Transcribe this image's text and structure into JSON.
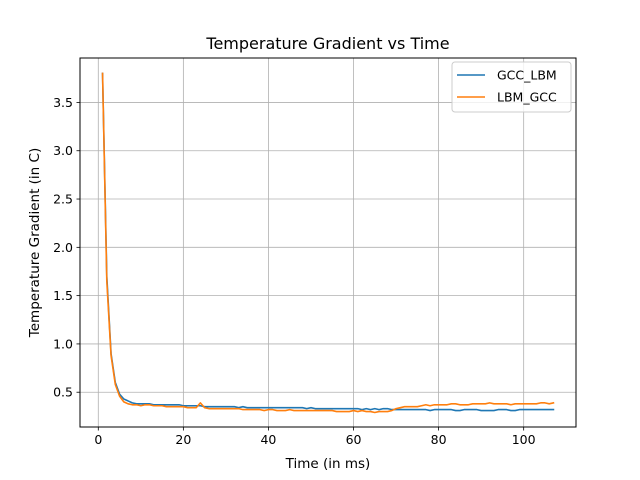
{
  "chart_data": {
    "type": "line",
    "title": "Temperature Gradient vs Time",
    "xlabel": "Time (in ms)",
    "ylabel": "Temperature Gradient (in C)",
    "xlim": [
      -4.3,
      112.3
    ],
    "ylim": [
      0.14,
      3.96
    ],
    "xticks": [
      0,
      20,
      40,
      60,
      80,
      100
    ],
    "yticks": [
      0.5,
      1.0,
      1.5,
      2.0,
      2.5,
      3.0,
      3.5
    ],
    "xtick_labels": [
      "0",
      "20",
      "40",
      "60",
      "80",
      "100"
    ],
    "ytick_labels": [
      "0.5",
      "1.0",
      "1.5",
      "2.0",
      "2.5",
      "3.0",
      "3.5"
    ],
    "grid": true,
    "legend_position": "top-right",
    "series": [
      {
        "name": "GCC_LBM",
        "color": "#1f77b4",
        "x": [
          1,
          2,
          3,
          4,
          5,
          6,
          7,
          8,
          9,
          10,
          11,
          12,
          13,
          14,
          15,
          16,
          17,
          18,
          19,
          20,
          21,
          22,
          23,
          24,
          25,
          26,
          27,
          28,
          29,
          30,
          31,
          32,
          33,
          34,
          35,
          36,
          37,
          38,
          39,
          40,
          41,
          42,
          43,
          44,
          45,
          46,
          47,
          48,
          49,
          50,
          51,
          52,
          53,
          54,
          55,
          56,
          57,
          58,
          59,
          60,
          61,
          62,
          63,
          64,
          65,
          66,
          67,
          68,
          69,
          70,
          71,
          72,
          73,
          74,
          75,
          76,
          77,
          78,
          79,
          80,
          81,
          82,
          83,
          84,
          85,
          86,
          87,
          88,
          89,
          90,
          91,
          92,
          93,
          94,
          95,
          96,
          97,
          98,
          99,
          100,
          101,
          102,
          103,
          104,
          105,
          106,
          107
        ],
        "y": [
          3.8,
          1.7,
          0.9,
          0.6,
          0.48,
          0.43,
          0.41,
          0.39,
          0.38,
          0.38,
          0.38,
          0.38,
          0.37,
          0.37,
          0.37,
          0.37,
          0.37,
          0.37,
          0.37,
          0.36,
          0.36,
          0.36,
          0.36,
          0.36,
          0.35,
          0.35,
          0.35,
          0.35,
          0.35,
          0.35,
          0.35,
          0.35,
          0.34,
          0.35,
          0.34,
          0.34,
          0.34,
          0.34,
          0.34,
          0.34,
          0.34,
          0.34,
          0.34,
          0.34,
          0.34,
          0.34,
          0.34,
          0.34,
          0.33,
          0.34,
          0.33,
          0.33,
          0.33,
          0.33,
          0.33,
          0.33,
          0.33,
          0.33,
          0.33,
          0.33,
          0.33,
          0.32,
          0.33,
          0.32,
          0.33,
          0.32,
          0.33,
          0.33,
          0.32,
          0.32,
          0.32,
          0.32,
          0.32,
          0.32,
          0.32,
          0.32,
          0.32,
          0.31,
          0.32,
          0.32,
          0.32,
          0.32,
          0.32,
          0.31,
          0.31,
          0.32,
          0.32,
          0.32,
          0.32,
          0.31,
          0.31,
          0.31,
          0.31,
          0.32,
          0.32,
          0.32,
          0.31,
          0.31,
          0.32,
          0.32,
          0.32,
          0.32,
          0.32,
          0.32,
          0.32,
          0.32,
          0.32
        ]
      },
      {
        "name": "LBM_GCC",
        "color": "#ff7f0e",
        "x": [
          1,
          2,
          3,
          4,
          5,
          6,
          7,
          8,
          9,
          10,
          11,
          12,
          13,
          14,
          15,
          16,
          17,
          18,
          19,
          20,
          21,
          22,
          23,
          24,
          25,
          26,
          27,
          28,
          29,
          30,
          31,
          32,
          33,
          34,
          35,
          36,
          37,
          38,
          39,
          40,
          41,
          42,
          43,
          44,
          45,
          46,
          47,
          48,
          49,
          50,
          51,
          52,
          53,
          54,
          55,
          56,
          57,
          58,
          59,
          60,
          61,
          62,
          63,
          64,
          65,
          66,
          67,
          68,
          69,
          70,
          71,
          72,
          73,
          74,
          75,
          76,
          77,
          78,
          79,
          80,
          81,
          82,
          83,
          84,
          85,
          86,
          87,
          88,
          89,
          90,
          91,
          92,
          93,
          94,
          95,
          96,
          97,
          98,
          99,
          100,
          101,
          102,
          103,
          104,
          105,
          106,
          107
        ],
        "y": [
          3.8,
          1.65,
          0.88,
          0.58,
          0.46,
          0.4,
          0.38,
          0.37,
          0.37,
          0.36,
          0.37,
          0.37,
          0.36,
          0.36,
          0.36,
          0.35,
          0.35,
          0.35,
          0.35,
          0.35,
          0.34,
          0.34,
          0.34,
          0.39,
          0.34,
          0.33,
          0.33,
          0.33,
          0.33,
          0.33,
          0.33,
          0.33,
          0.33,
          0.32,
          0.32,
          0.32,
          0.32,
          0.32,
          0.31,
          0.32,
          0.32,
          0.31,
          0.31,
          0.31,
          0.32,
          0.31,
          0.31,
          0.31,
          0.31,
          0.31,
          0.31,
          0.31,
          0.31,
          0.31,
          0.31,
          0.3,
          0.3,
          0.3,
          0.3,
          0.31,
          0.3,
          0.31,
          0.3,
          0.3,
          0.29,
          0.3,
          0.3,
          0.3,
          0.31,
          0.33,
          0.34,
          0.35,
          0.35,
          0.35,
          0.35,
          0.36,
          0.37,
          0.36,
          0.37,
          0.37,
          0.37,
          0.37,
          0.38,
          0.38,
          0.37,
          0.37,
          0.37,
          0.38,
          0.38,
          0.38,
          0.38,
          0.39,
          0.38,
          0.38,
          0.38,
          0.38,
          0.37,
          0.38,
          0.38,
          0.38,
          0.38,
          0.38,
          0.38,
          0.39,
          0.39,
          0.38,
          0.39
        ]
      }
    ]
  }
}
